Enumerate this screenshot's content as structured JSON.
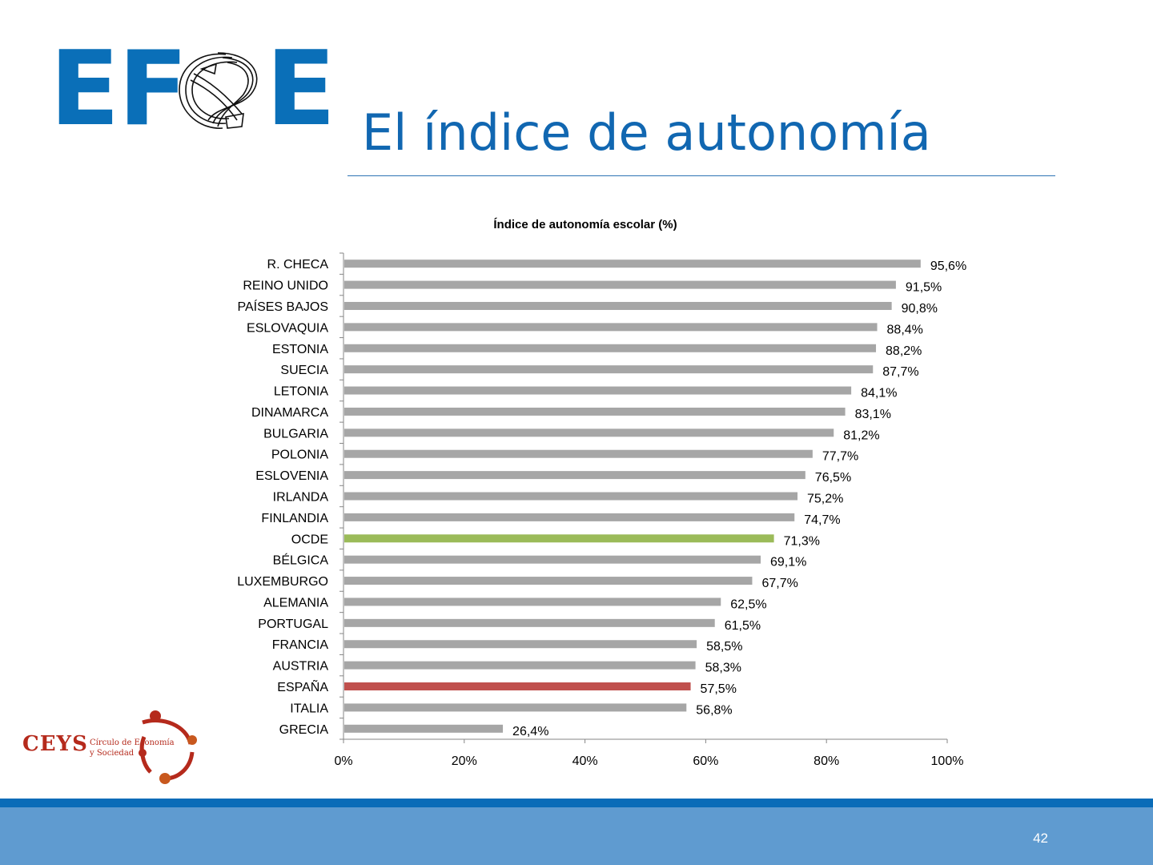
{
  "header": {
    "logo_text": "EFSE",
    "title": "El índice de autonomía"
  },
  "chart_data": {
    "type": "bar",
    "orientation": "horizontal",
    "title": "Índice de autonomía escolar (%)",
    "xlabel": "",
    "ylabel": "",
    "xlim": [
      0,
      100
    ],
    "x_ticks": [
      "0%",
      "20%",
      "40%",
      "60%",
      "80%",
      "100%"
    ],
    "grid": false,
    "legend": "none",
    "categories": [
      "R. CHECA",
      "REINO UNIDO",
      "PAÍSES BAJOS",
      "ESLOVAQUIA",
      "ESTONIA",
      "SUECIA",
      "LETONIA",
      "DINAMARCA",
      "BULGARIA",
      "POLONIA",
      "ESLOVENIA",
      "IRLANDA",
      "FINLANDIA",
      "OCDE",
      "BÉLGICA",
      "LUXEMBURGO",
      "ALEMANIA",
      "PORTUGAL",
      "FRANCIA",
      "AUSTRIA",
      "ESPAÑA",
      "ITALIA",
      "GRECIA"
    ],
    "values": [
      95.6,
      91.5,
      90.8,
      88.4,
      88.2,
      87.7,
      84.1,
      83.1,
      81.2,
      77.7,
      76.5,
      75.2,
      74.7,
      71.3,
      69.1,
      67.7,
      62.5,
      61.5,
      58.5,
      58.3,
      57.5,
      56.8,
      26.4
    ],
    "data_labels": [
      "95,6%",
      "91,5%",
      "90,8%",
      "88,4%",
      "88,2%",
      "87,7%",
      "84,1%",
      "83,1%",
      "81,2%",
      "77,7%",
      "76,5%",
      "75,2%",
      "74,7%",
      "71,3%",
      "69,1%",
      "67,7%",
      "62,5%",
      "61,5%",
      "58,5%",
      "58,3%",
      "57,5%",
      "56,8%",
      "26,4%"
    ],
    "colors": {
      "default": "#a6a6a6",
      "highlight": {
        "OCDE": "#9bbb59",
        "ESPAÑA": "#c0504d"
      }
    }
  },
  "ceys": {
    "acronym": "CEYS",
    "line1": "Círculo de Economía",
    "line2": "y Sociedad"
  },
  "footer": {
    "page_number": "42"
  },
  "colors": {
    "brand_blue": "#0a6fb8",
    "title_blue": "#1167b1",
    "footer_blue": "#5f9bd0",
    "ceys_red": "#b52a1c"
  }
}
